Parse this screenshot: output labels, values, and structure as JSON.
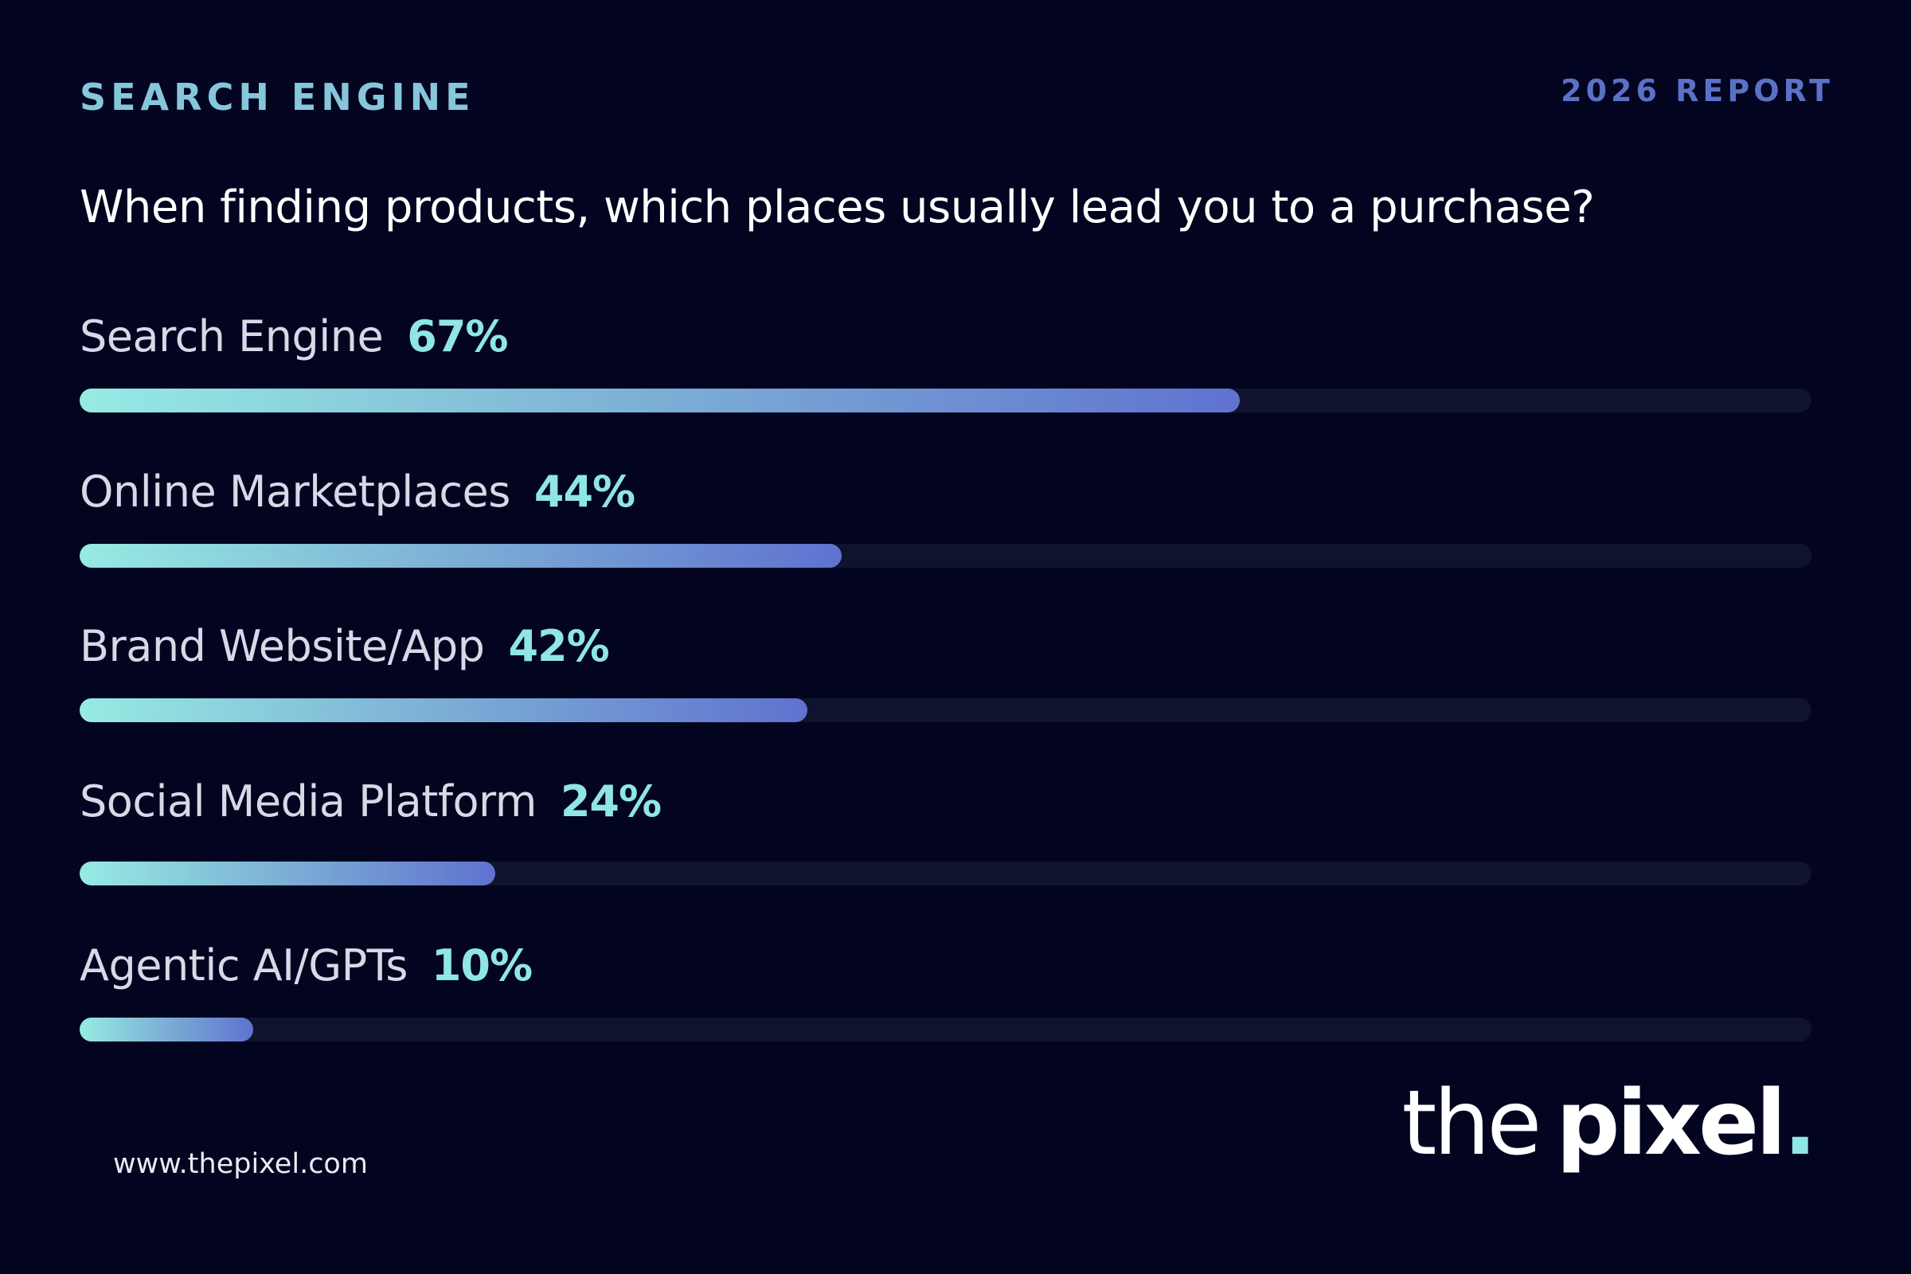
{
  "header": {
    "eyebrow": "SEARCH ENGINE",
    "report": "2026 REPORT"
  },
  "question": "When finding products, which places usually lead you to a purchase?",
  "chart_data": {
    "type": "bar",
    "orientation": "horizontal",
    "title": "When finding products, which places usually lead you to a purchase?",
    "categories": [
      "Search Engine",
      "Online Marketplaces",
      "Brand Website/App",
      "Social Media Platform",
      "Agentic AI/GPTs"
    ],
    "values": [
      67,
      44,
      42,
      24,
      10
    ],
    "value_labels": [
      "67%",
      "44%",
      "42%",
      "24%",
      "10%"
    ],
    "xlim": [
      0,
      100
    ],
    "grid": false,
    "colors": {
      "bar_start": "#96ebe3",
      "bar_end": "#5f72cf",
      "track": "#10132e",
      "value_text": "#8fe6e4"
    }
  },
  "footer": {
    "url": "www.thepixel.com",
    "logo_part1": "the",
    "logo_part2": "pixel",
    "logo_dot": "."
  },
  "colors": {
    "background": "#020420",
    "eyebrow": "#86c6db",
    "report": "#5b71c6"
  }
}
